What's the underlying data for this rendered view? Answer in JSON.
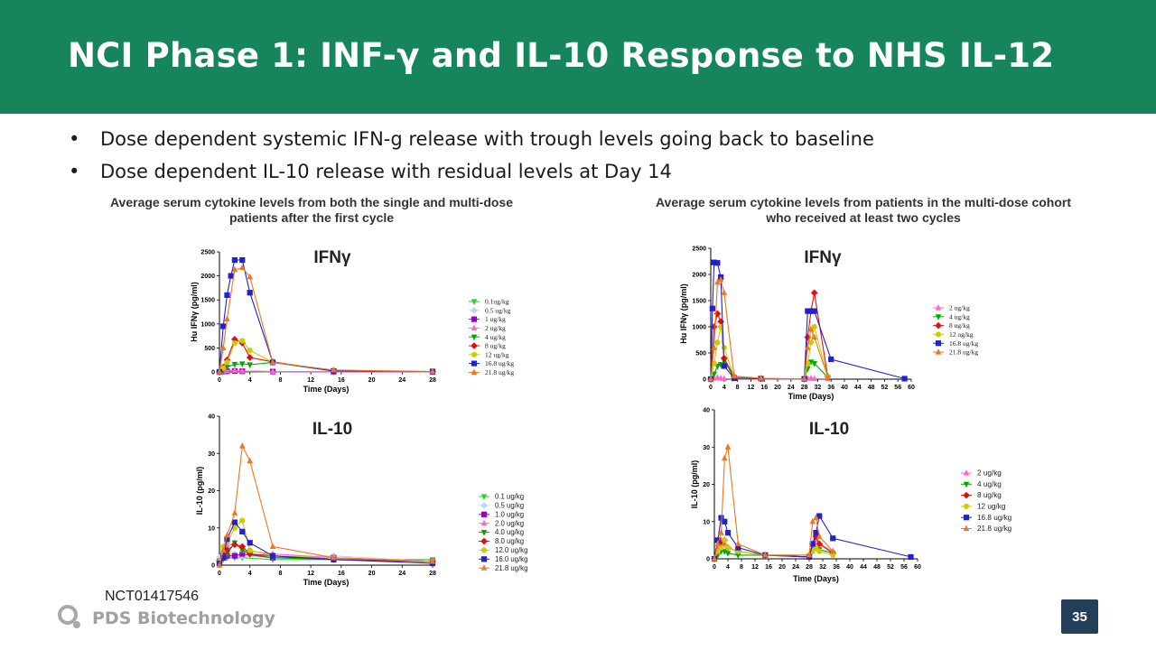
{
  "slide": {
    "title": "NCI Phase 1: INF-γ and IL-10 Response to NHS IL-12",
    "bullets": [
      "Dose dependent systemic IFN-g release with trough levels going back to baseline",
      "Dose dependent IL-10 release with residual levels at Day 14"
    ],
    "caption_left": "Average serum cytokine levels  from both the single and multi-dose patients after the first cycle",
    "caption_right": "Average serum cytokine levels from patients in the multi-dose cohort who received at least two cycles",
    "footnote": "NCT01417546",
    "logo_text": "PDS Biotechnology",
    "page_number": "35",
    "colors": {
      "header": "#17855b",
      "page_badge": "#243f5a"
    }
  },
  "chart_data": [
    {
      "id": "ifn-first-cycle",
      "type": "line",
      "title": "IFNγ",
      "xlabel": "Time (Days)",
      "ylabel": "Hu IFNγ (pg/ml)",
      "xlim": [
        0,
        28
      ],
      "ylim": [
        0,
        2500
      ],
      "xticks": [
        0,
        4,
        8,
        12,
        16,
        20,
        24,
        28
      ],
      "yticks": [
        0,
        500,
        1000,
        1500,
        2000,
        2500
      ],
      "legend_position": "right",
      "series": [
        {
          "name": "0.1ug/kg",
          "color": "#33cc33",
          "marker": "triangle-down",
          "x": [
            0,
            0.5,
            1,
            2,
            3,
            7,
            15,
            28
          ],
          "y": [
            0,
            5,
            8,
            10,
            8,
            5,
            3,
            2
          ]
        },
        {
          "name": "0.5 ug/kg",
          "color": "#b9d7f2",
          "marker": "diamond",
          "x": [
            0,
            0.5,
            1,
            2,
            3,
            7,
            15,
            28
          ],
          "y": [
            0,
            8,
            12,
            15,
            10,
            6,
            3,
            2
          ]
        },
        {
          "name": "1 ug/kg",
          "color": "#9900cc",
          "marker": "square",
          "x": [
            0,
            0.5,
            1,
            2,
            3,
            7,
            15,
            28
          ],
          "y": [
            0,
            10,
            15,
            20,
            15,
            8,
            4,
            2
          ]
        },
        {
          "name": "2 ug/kg",
          "color": "#ff66cc",
          "marker": "triangle",
          "x": [
            0,
            0.5,
            1,
            2,
            3,
            7,
            15,
            28
          ],
          "y": [
            0,
            15,
            25,
            30,
            20,
            10,
            5,
            3
          ]
        },
        {
          "name": "4 ug/kg",
          "color": "#00aa00",
          "marker": "triangle-down",
          "x": [
            0,
            0.5,
            1,
            2,
            3,
            4,
            7,
            15,
            28
          ],
          "y": [
            0,
            40,
            100,
            160,
            170,
            150,
            200,
            20,
            5
          ]
        },
        {
          "name": "8 ug/kg",
          "color": "#dd1111",
          "marker": "diamond",
          "x": [
            0,
            0.5,
            1,
            2,
            3,
            4,
            7,
            15,
            28
          ],
          "y": [
            0,
            100,
            250,
            680,
            600,
            300,
            210,
            20,
            5
          ]
        },
        {
          "name": "12 ug/kg",
          "color": "#cccc00",
          "marker": "circle",
          "x": [
            0,
            0.5,
            1,
            2,
            3,
            4,
            7,
            15,
            28
          ],
          "y": [
            0,
            80,
            200,
            600,
            650,
            450,
            200,
            20,
            5
          ]
        },
        {
          "name": "16.8 ug/kg",
          "color": "#2222cc",
          "marker": "square",
          "x": [
            0,
            0.5,
            1,
            1.5,
            2,
            3,
            4,
            7,
            15,
            28
          ],
          "y": [
            0,
            950,
            1600,
            2000,
            2330,
            2330,
            1650,
            200,
            20,
            10
          ]
        },
        {
          "name": "21.8 ug/kg",
          "color": "#ee7722",
          "marker": "triangle",
          "x": [
            0,
            0.5,
            1,
            2,
            3,
            4,
            7,
            15,
            28
          ],
          "y": [
            0,
            500,
            1100,
            2130,
            2170,
            1980,
            200,
            40,
            10
          ]
        }
      ]
    },
    {
      "id": "ifn-two-cycles",
      "type": "line",
      "title": "IFNγ",
      "xlabel": "Time (Days)",
      "ylabel": "Hu IFNγ (pg/ml)",
      "xlim": [
        0,
        60
      ],
      "ylim": [
        0,
        2500
      ],
      "xticks": [
        0,
        4,
        8,
        12,
        16,
        20,
        24,
        28,
        32,
        36,
        40,
        44,
        48,
        52,
        56,
        60
      ],
      "yticks": [
        0,
        500,
        1000,
        1500,
        2000,
        2500
      ],
      "legend_position": "right",
      "series": [
        {
          "name": "2 ug/kg",
          "color": "#ff66cc",
          "marker": "triangle",
          "x": [
            0,
            1,
            2,
            3,
            4,
            7,
            15,
            28,
            29,
            30,
            31,
            35
          ],
          "y": [
            0,
            20,
            30,
            20,
            10,
            5,
            3,
            2,
            15,
            20,
            10,
            5
          ]
        },
        {
          "name": "4 ug/kg",
          "color": "#00aa00",
          "marker": "triangle-down",
          "x": [
            0,
            1,
            2,
            3,
            4,
            7,
            15,
            28,
            29,
            30,
            31,
            35
          ],
          "y": [
            0,
            100,
            250,
            280,
            350,
            30,
            10,
            5,
            200,
            330,
            300,
            40
          ]
        },
        {
          "name": "8 ug/kg",
          "color": "#dd1111",
          "marker": "diamond",
          "x": [
            0,
            1,
            2,
            3,
            4,
            7,
            15,
            28,
            29,
            30,
            31,
            35
          ],
          "y": [
            0,
            1000,
            1250,
            1100,
            400,
            50,
            10,
            5,
            800,
            1300,
            1650,
            50
          ]
        },
        {
          "name": "12 ug/kg",
          "color": "#cccc00",
          "marker": "circle",
          "x": [
            0,
            1,
            2,
            3,
            4,
            7,
            15,
            28,
            29,
            30,
            31,
            35
          ],
          "y": [
            0,
            300,
            700,
            1000,
            600,
            40,
            10,
            5,
            300,
            700,
            1000,
            50
          ]
        },
        {
          "name": "16.8 ug/kg",
          "color": "#2222cc",
          "marker": "square",
          "x": [
            0,
            0.5,
            1,
            2,
            3,
            4,
            7,
            15,
            28,
            29,
            30,
            31,
            36,
            58
          ],
          "y": [
            0,
            1350,
            2230,
            2220,
            1950,
            250,
            20,
            10,
            5,
            1300,
            1300,
            1300,
            380,
            10
          ]
        },
        {
          "name": "21.8 ug/kg",
          "color": "#ee7722",
          "marker": "triangle",
          "x": [
            0,
            1,
            2,
            3,
            4,
            7,
            15,
            28,
            29,
            30,
            31,
            35
          ],
          "y": [
            0,
            600,
            1850,
            1900,
            1650,
            60,
            15,
            5,
            600,
            950,
            800,
            50
          ]
        }
      ]
    },
    {
      "id": "il10-first-cycle",
      "type": "line",
      "title": "IL-10",
      "xlabel": "Time (Days)",
      "ylabel": "IL-10 (pg/ml)",
      "xlim": [
        0,
        28
      ],
      "ylim": [
        0,
        40
      ],
      "xticks": [
        0,
        4,
        8,
        12,
        16,
        20,
        24,
        28
      ],
      "yticks": [
        0,
        10,
        20,
        30,
        40
      ],
      "legend_position": "right",
      "series": [
        {
          "name": "0.1 ug/kg",
          "color": "#33cc33",
          "marker": "triangle-down",
          "x": [
            0,
            0.5,
            1,
            2,
            3,
            7,
            15,
            28
          ],
          "y": [
            1,
            1.5,
            2,
            2,
            2,
            1.5,
            1.5,
            1.5
          ]
        },
        {
          "name": "0.5 ug/kg",
          "color": "#b9d7f2",
          "marker": "diamond",
          "x": [
            0,
            0.5,
            1,
            2,
            3,
            7,
            15,
            28
          ],
          "y": [
            2,
            4,
            3,
            3,
            2.5,
            2,
            2.5,
            1
          ]
        },
        {
          "name": "1.0 ug/kg",
          "color": "#9900cc",
          "marker": "square",
          "x": [
            0,
            0.5,
            1,
            2,
            3,
            7,
            15,
            28
          ],
          "y": [
            1,
            2,
            2.5,
            2.5,
            3,
            2,
            2,
            1
          ]
        },
        {
          "name": "2.0 ug/kg",
          "color": "#ff66cc",
          "marker": "triangle",
          "x": [
            0,
            0.5,
            1,
            2,
            3,
            7,
            15,
            28
          ],
          "y": [
            1,
            3,
            5,
            6,
            4,
            3,
            2,
            1
          ]
        },
        {
          "name": "4.0 ug/kg",
          "color": "#00aa00",
          "marker": "triangle-down",
          "x": [
            0,
            0.5,
            1,
            2,
            3,
            4,
            7,
            15,
            28
          ],
          "y": [
            1,
            2,
            3,
            6,
            4,
            3,
            2,
            1.5,
            1
          ]
        },
        {
          "name": "8.0 ug/kg",
          "color": "#dd1111",
          "marker": "diamond",
          "x": [
            0,
            0.5,
            1,
            2,
            3,
            4,
            7,
            15,
            28
          ],
          "y": [
            1,
            3,
            4,
            5.5,
            5,
            3,
            2.5,
            1.5,
            1
          ]
        },
        {
          "name": "12.0 ug/kg",
          "color": "#cccc00",
          "marker": "circle",
          "x": [
            0,
            0.5,
            1,
            2,
            3,
            4,
            7,
            15,
            28
          ],
          "y": [
            1,
            5,
            6,
            10,
            12,
            4,
            2.5,
            2,
            1
          ]
        },
        {
          "name": "16.0 ug/kg",
          "color": "#2222cc",
          "marker": "square",
          "x": [
            0,
            0.5,
            1,
            2,
            3,
            4,
            7,
            15,
            28
          ],
          "y": [
            0.5,
            2,
            7,
            11.5,
            9,
            6,
            2.5,
            1.5,
            0.5
          ]
        },
        {
          "name": "21.8 ug/kg",
          "color": "#ee7722",
          "marker": "triangle",
          "x": [
            0,
            0.5,
            1,
            2,
            3,
            4,
            7,
            15,
            28
          ],
          "y": [
            0,
            4,
            8,
            14,
            32,
            28,
            5,
            2,
            1
          ]
        }
      ]
    },
    {
      "id": "il10-two-cycles",
      "type": "line",
      "title": "IL-10",
      "xlabel": "Time (Days)",
      "ylabel": "IL-10 (pg/ml)",
      "xlim": [
        0,
        60
      ],
      "ylim": [
        0,
        40
      ],
      "xticks": [
        0,
        4,
        8,
        12,
        16,
        20,
        24,
        28,
        32,
        36,
        40,
        44,
        48,
        52,
        56,
        60
      ],
      "yticks": [
        0,
        10,
        20,
        30,
        40
      ],
      "legend_position": "right",
      "series": [
        {
          "name": "2 ug/kg",
          "color": "#ff66cc",
          "marker": "triangle",
          "x": [
            0,
            1,
            2,
            3,
            4,
            7,
            15,
            28,
            29,
            30,
            31,
            35
          ],
          "y": [
            0,
            3,
            5,
            4,
            3,
            2,
            1,
            1,
            3,
            5,
            4,
            2
          ]
        },
        {
          "name": "4 ug/kg",
          "color": "#00aa00",
          "marker": "triangle-down",
          "x": [
            0,
            1,
            2,
            3,
            4,
            7,
            15,
            28,
            29,
            30,
            31,
            35
          ],
          "y": [
            0,
            1,
            2,
            2,
            1.5,
            1,
            1,
            0.5,
            2,
            3,
            2.5,
            1.5
          ]
        },
        {
          "name": "8 ug/kg",
          "color": "#dd1111",
          "marker": "diamond",
          "x": [
            0,
            1,
            2,
            3,
            4,
            7,
            15,
            28,
            29,
            30,
            31,
            35
          ],
          "y": [
            0,
            2,
            4,
            5,
            3,
            2,
            1,
            0.5,
            4,
            6,
            4,
            1.5
          ]
        },
        {
          "name": "12 ug/kg",
          "color": "#cccc00",
          "marker": "circle",
          "x": [
            0,
            1,
            2,
            3,
            4,
            7,
            15,
            28,
            29,
            30,
            31,
            35
          ],
          "y": [
            0,
            2,
            3,
            5,
            3,
            2,
            1,
            1,
            2,
            3,
            2,
            1
          ]
        },
        {
          "name": "16.8 ug/kg",
          "color": "#2222cc",
          "marker": "square",
          "x": [
            0,
            1,
            2,
            3,
            4,
            7,
            15,
            28,
            29,
            30,
            31,
            35,
            58
          ],
          "y": [
            0,
            5,
            11,
            10,
            7,
            3,
            1,
            0.5,
            4,
            7,
            11.5,
            5.5,
            0.5
          ]
        },
        {
          "name": "21.8 ug/kg",
          "color": "#ee7722",
          "marker": "triangle",
          "x": [
            0,
            1,
            2,
            3,
            4,
            7,
            15,
            28,
            29,
            30,
            31,
            35
          ],
          "y": [
            0,
            4,
            7,
            27,
            30,
            4,
            1,
            1,
            10,
            11,
            6,
            2
          ]
        }
      ]
    }
  ]
}
